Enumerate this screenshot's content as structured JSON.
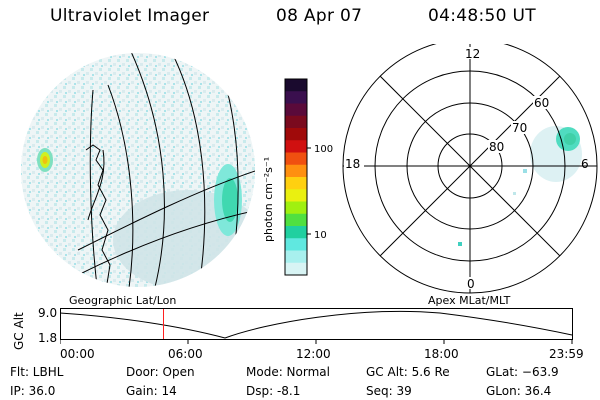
{
  "header": {
    "title": "Ultraviolet Imager",
    "date": "08 Apr 07",
    "time": "04:48:50 UT"
  },
  "colorbar": {
    "unit_label": "photon cm⁻²s⁻¹",
    "tick_labels": [
      "100",
      "10"
    ],
    "colors": [
      "#1a0a2e",
      "#3a0f4e",
      "#5a0a3a",
      "#7a0a1e",
      "#a00a0a",
      "#d01010",
      "#f05010",
      "#ff9010",
      "#ffd010",
      "#eaf010",
      "#a0f010",
      "#50e040",
      "#20d0a0",
      "#60e8e0",
      "#a8f0ee",
      "#d8f4f4"
    ]
  },
  "polar_plot": {
    "ring_labels": [
      "60",
      "70",
      "80"
    ],
    "mlt_labels": {
      "top": "12",
      "left": "18",
      "right": "6",
      "bottom": "0"
    }
  },
  "map_labels": {
    "left": "Geographic Lat/Lon",
    "right": "Apex MLat/MLT"
  },
  "alt_timeline": {
    "axis_label": "GC Alt",
    "y_ticks": [
      "9.0",
      "1.8"
    ],
    "x_ticks": [
      "00:00",
      "06:00",
      "12:00",
      "18:00",
      "23:59"
    ],
    "current_time_fraction": 0.2006,
    "marker_color": "#ff2020"
  },
  "status": {
    "flt": "Flt: LBHL",
    "ip": "IP: 36.0",
    "door": "Door: Open",
    "gain": "Gain: 14",
    "mode": "Mode: Normal",
    "dsp": "Dsp:    -8.1",
    "gc_alt": "GC Alt: 5.6 Re",
    "seq": "Seq: 39",
    "glat": "GLat: −63.9",
    "glon": "GLon:  36.4"
  }
}
